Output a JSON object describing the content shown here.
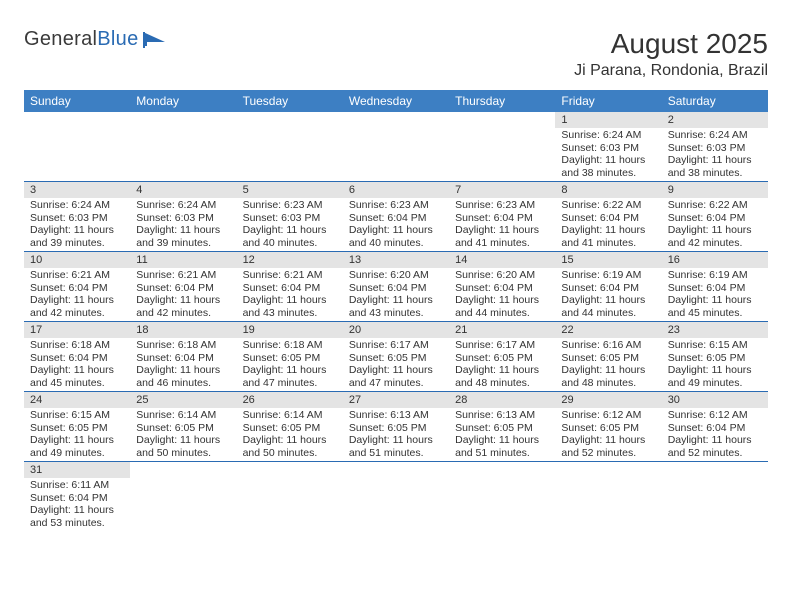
{
  "logo": {
    "text1": "General",
    "text2": "Blue"
  },
  "title": "August 2025",
  "location": "Ji Parana, Rondonia, Brazil",
  "colors": {
    "header_bg": "#3d7fc3",
    "header_fg": "#ffffff",
    "daynum_bg": "#e4e4e4",
    "row_border": "#2a6bb3",
    "text": "#333333",
    "logo_accent": "#2a6bb3"
  },
  "dow": [
    "Sunday",
    "Monday",
    "Tuesday",
    "Wednesday",
    "Thursday",
    "Friday",
    "Saturday"
  ],
  "weeks": [
    [
      null,
      null,
      null,
      null,
      null,
      {
        "n": "1",
        "sr": "6:24 AM",
        "ss": "6:03 PM",
        "dl": "11 hours and 38 minutes."
      },
      {
        "n": "2",
        "sr": "6:24 AM",
        "ss": "6:03 PM",
        "dl": "11 hours and 38 minutes."
      }
    ],
    [
      {
        "n": "3",
        "sr": "6:24 AM",
        "ss": "6:03 PM",
        "dl": "11 hours and 39 minutes."
      },
      {
        "n": "4",
        "sr": "6:24 AM",
        "ss": "6:03 PM",
        "dl": "11 hours and 39 minutes."
      },
      {
        "n": "5",
        "sr": "6:23 AM",
        "ss": "6:03 PM",
        "dl": "11 hours and 40 minutes."
      },
      {
        "n": "6",
        "sr": "6:23 AM",
        "ss": "6:04 PM",
        "dl": "11 hours and 40 minutes."
      },
      {
        "n": "7",
        "sr": "6:23 AM",
        "ss": "6:04 PM",
        "dl": "11 hours and 41 minutes."
      },
      {
        "n": "8",
        "sr": "6:22 AM",
        "ss": "6:04 PM",
        "dl": "11 hours and 41 minutes."
      },
      {
        "n": "9",
        "sr": "6:22 AM",
        "ss": "6:04 PM",
        "dl": "11 hours and 42 minutes."
      }
    ],
    [
      {
        "n": "10",
        "sr": "6:21 AM",
        "ss": "6:04 PM",
        "dl": "11 hours and 42 minutes."
      },
      {
        "n": "11",
        "sr": "6:21 AM",
        "ss": "6:04 PM",
        "dl": "11 hours and 42 minutes."
      },
      {
        "n": "12",
        "sr": "6:21 AM",
        "ss": "6:04 PM",
        "dl": "11 hours and 43 minutes."
      },
      {
        "n": "13",
        "sr": "6:20 AM",
        "ss": "6:04 PM",
        "dl": "11 hours and 43 minutes."
      },
      {
        "n": "14",
        "sr": "6:20 AM",
        "ss": "6:04 PM",
        "dl": "11 hours and 44 minutes."
      },
      {
        "n": "15",
        "sr": "6:19 AM",
        "ss": "6:04 PM",
        "dl": "11 hours and 44 minutes."
      },
      {
        "n": "16",
        "sr": "6:19 AM",
        "ss": "6:04 PM",
        "dl": "11 hours and 45 minutes."
      }
    ],
    [
      {
        "n": "17",
        "sr": "6:18 AM",
        "ss": "6:04 PM",
        "dl": "11 hours and 45 minutes."
      },
      {
        "n": "18",
        "sr": "6:18 AM",
        "ss": "6:04 PM",
        "dl": "11 hours and 46 minutes."
      },
      {
        "n": "19",
        "sr": "6:18 AM",
        "ss": "6:05 PM",
        "dl": "11 hours and 47 minutes."
      },
      {
        "n": "20",
        "sr": "6:17 AM",
        "ss": "6:05 PM",
        "dl": "11 hours and 47 minutes."
      },
      {
        "n": "21",
        "sr": "6:17 AM",
        "ss": "6:05 PM",
        "dl": "11 hours and 48 minutes."
      },
      {
        "n": "22",
        "sr": "6:16 AM",
        "ss": "6:05 PM",
        "dl": "11 hours and 48 minutes."
      },
      {
        "n": "23",
        "sr": "6:15 AM",
        "ss": "6:05 PM",
        "dl": "11 hours and 49 minutes."
      }
    ],
    [
      {
        "n": "24",
        "sr": "6:15 AM",
        "ss": "6:05 PM",
        "dl": "11 hours and 49 minutes."
      },
      {
        "n": "25",
        "sr": "6:14 AM",
        "ss": "6:05 PM",
        "dl": "11 hours and 50 minutes."
      },
      {
        "n": "26",
        "sr": "6:14 AM",
        "ss": "6:05 PM",
        "dl": "11 hours and 50 minutes."
      },
      {
        "n": "27",
        "sr": "6:13 AM",
        "ss": "6:05 PM",
        "dl": "11 hours and 51 minutes."
      },
      {
        "n": "28",
        "sr": "6:13 AM",
        "ss": "6:05 PM",
        "dl": "11 hours and 51 minutes."
      },
      {
        "n": "29",
        "sr": "6:12 AM",
        "ss": "6:05 PM",
        "dl": "11 hours and 52 minutes."
      },
      {
        "n": "30",
        "sr": "6:12 AM",
        "ss": "6:04 PM",
        "dl": "11 hours and 52 minutes."
      }
    ],
    [
      {
        "n": "31",
        "sr": "6:11 AM",
        "ss": "6:04 PM",
        "dl": "11 hours and 53 minutes."
      },
      null,
      null,
      null,
      null,
      null,
      null
    ]
  ],
  "labels": {
    "sunrise": "Sunrise: ",
    "sunset": "Sunset: ",
    "daylight": "Daylight: "
  }
}
